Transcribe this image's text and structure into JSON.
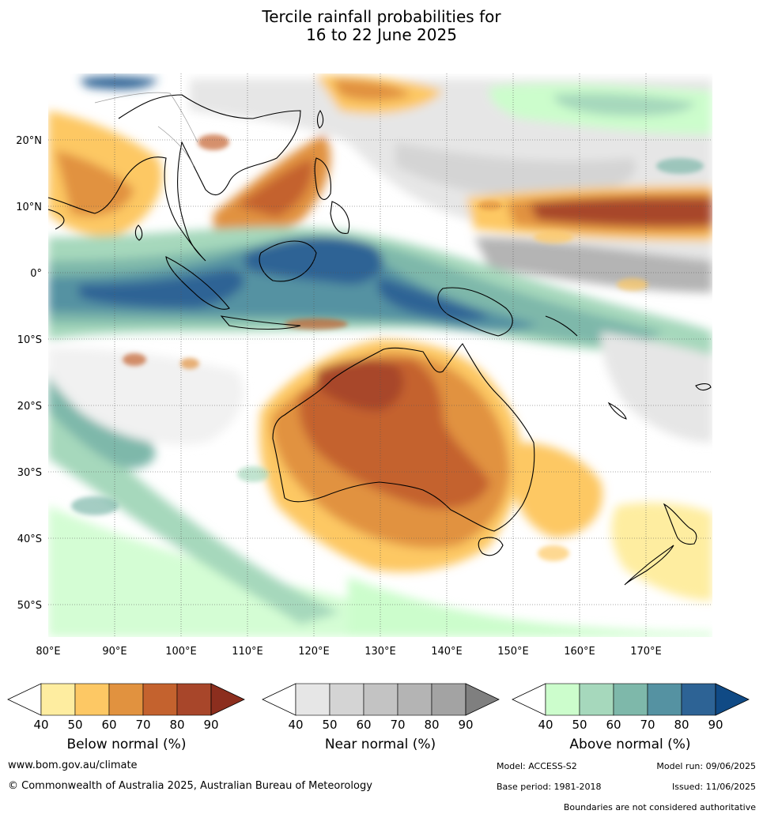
{
  "title_line1": "Tercile rainfall probabilities for",
  "title_line2": "16 to 22 June 2025",
  "map": {
    "lon_labels": [
      "80°E",
      "90°E",
      "100°E",
      "110°E",
      "120°E",
      "130°E",
      "140°E",
      "150°E",
      "160°E",
      "170°E"
    ],
    "lat_labels": [
      "20°N",
      "10°N",
      "0°",
      "10°S",
      "20°S",
      "30°S",
      "40°S",
      "50°S"
    ],
    "gridlines": true
  },
  "colorbars": {
    "below": {
      "label": "Below normal (%)",
      "ticks": [
        "40",
        "50",
        "60",
        "70",
        "80",
        "90"
      ],
      "colors": [
        "#ffffff",
        "#feeda0",
        "#fdc864",
        "#e1923f",
        "#c4622e",
        "#a8462a",
        "#8c2e1e"
      ]
    },
    "near": {
      "label": "Near normal (%)",
      "ticks": [
        "40",
        "50",
        "60",
        "70",
        "80",
        "90"
      ],
      "colors": [
        "#ffffff",
        "#e6e6e6",
        "#d4d4d4",
        "#c3c3c3",
        "#b4b4b4",
        "#a3a3a3",
        "#7f7f7f"
      ]
    },
    "above": {
      "label": "Above normal (%)",
      "ticks": [
        "40",
        "50",
        "60",
        "70",
        "80",
        "90"
      ],
      "colors": [
        "#ffffff",
        "#ccfdcc",
        "#a6d8bc",
        "#7eb8aa",
        "#5592a2",
        "#2d6395",
        "#104a85"
      ]
    }
  },
  "footer": {
    "website": "www.bom.gov.au/climate",
    "copyright": "© Commonwealth of Australia 2025, Australian Bureau of Meteorology",
    "model": "Model: ACCESS-S2",
    "model_run": "Model run: 09/06/2025",
    "base_period": "Base period: 1981-2018",
    "issued": "Issued: 11/06/2025",
    "disclaimer": "Boundaries are not considered authoritative"
  }
}
